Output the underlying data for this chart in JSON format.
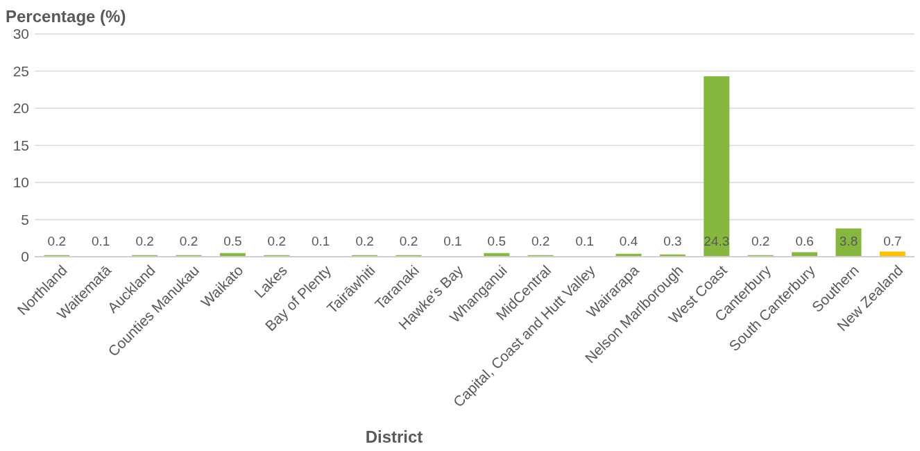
{
  "chart_data": {
    "type": "bar",
    "xlabel": "District",
    "ylabel": "Percentage (%)",
    "categories": [
      "Northland",
      "Waitematā",
      "Auckland",
      "Counties Manukau",
      "Waikato",
      "Lakes",
      "Bay of Plenty",
      "Tairāwhiti",
      "Taranaki",
      "Hawke's Bay",
      "Whanganui",
      "MidCentral",
      "Capital, Coast and Hutt Valley",
      "Wairarapa",
      "Nelson Marlborough",
      "West Coast",
      "Canterbury",
      "South Canterbury",
      "Southern",
      "New Zealand"
    ],
    "values": [
      0.2,
      0.1,
      0.2,
      0.2,
      0.5,
      0.2,
      0.1,
      0.2,
      0.2,
      0.1,
      0.5,
      0.2,
      0.1,
      0.4,
      0.3,
      24.3,
      0.2,
      0.6,
      3.8,
      0.7
    ],
    "colors": [
      "#86b83f",
      "#86b83f",
      "#86b83f",
      "#86b83f",
      "#86b83f",
      "#86b83f",
      "#86b83f",
      "#86b83f",
      "#86b83f",
      "#86b83f",
      "#86b83f",
      "#86b83f",
      "#86b83f",
      "#86b83f",
      "#86b83f",
      "#86b83f",
      "#86b83f",
      "#86b83f",
      "#86b83f",
      "#ffc000"
    ],
    "ylim": [
      0,
      30
    ],
    "yticks": [
      0,
      5,
      10,
      15,
      20,
      25,
      30
    ],
    "grid": "y",
    "data_labels": true
  }
}
